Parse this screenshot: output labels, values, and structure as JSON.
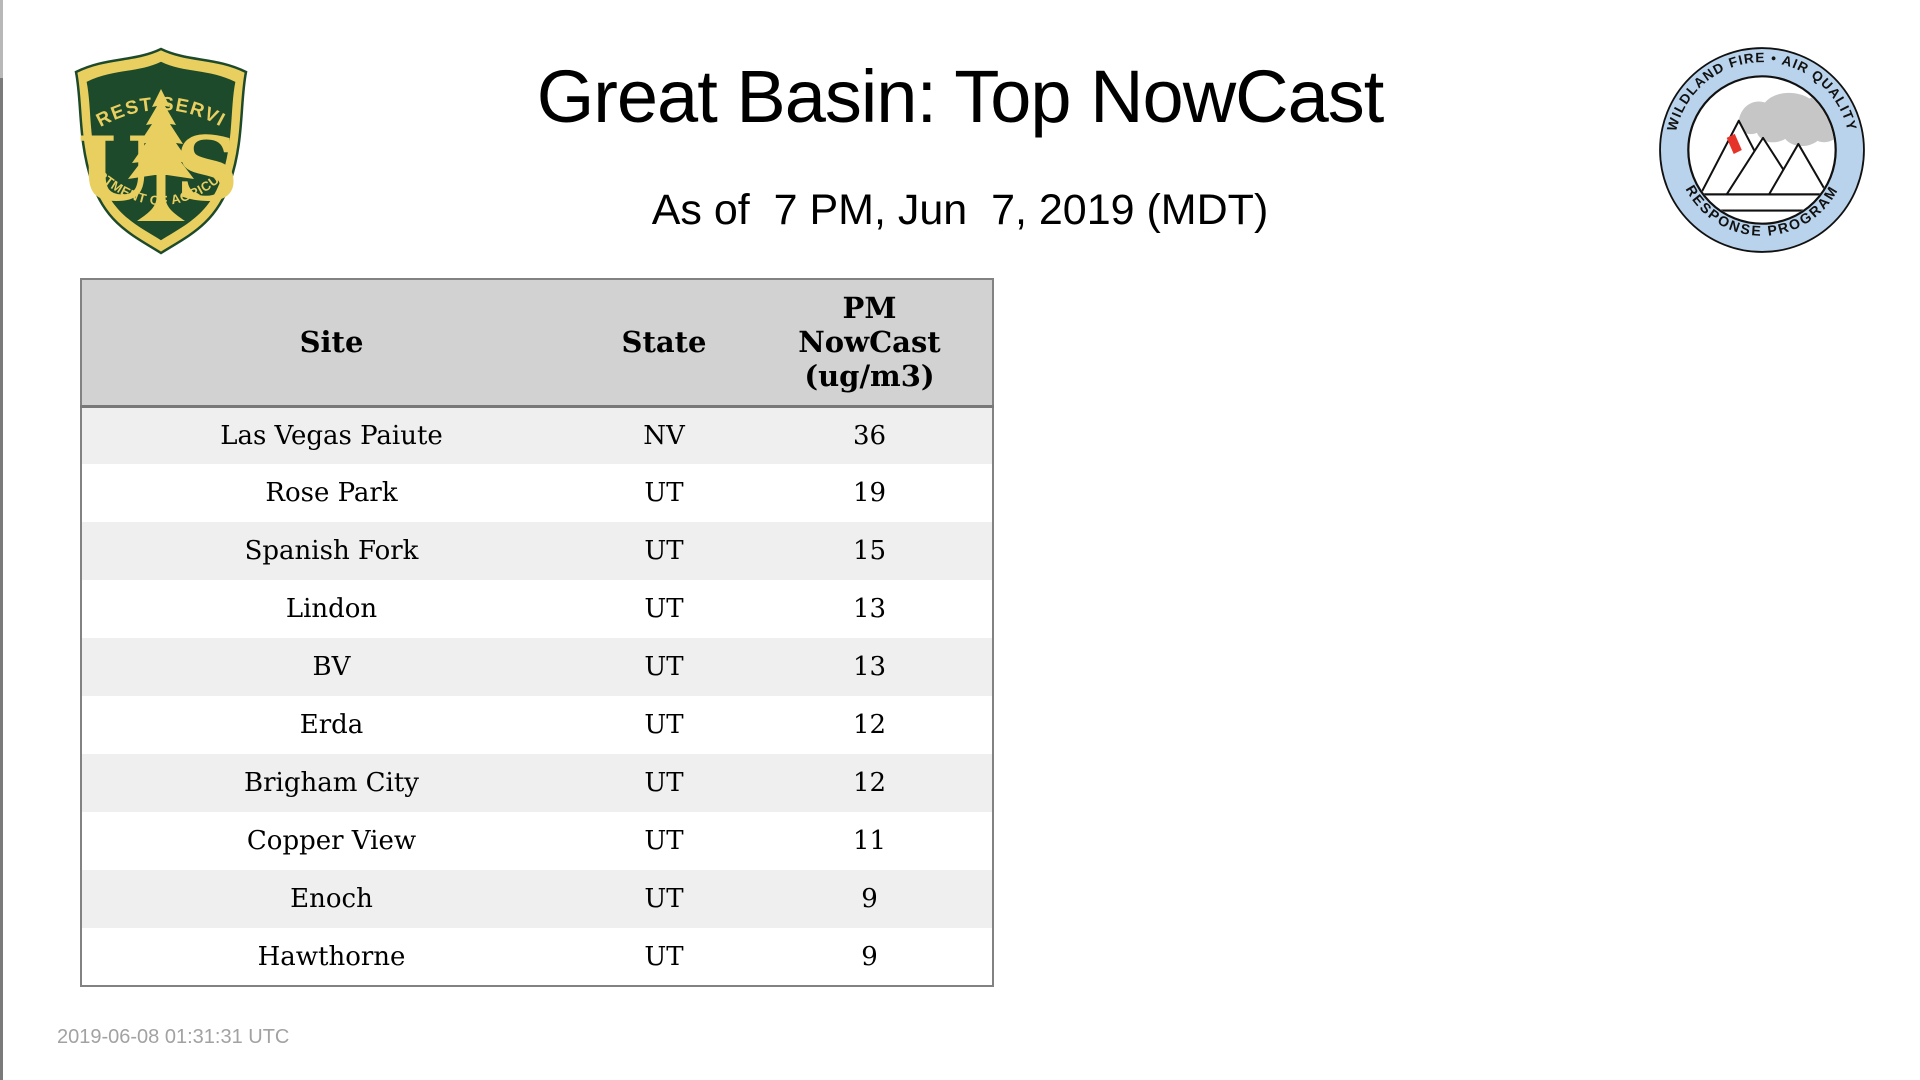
{
  "page": {
    "title": "Great Basin: Top NowCast",
    "subtitle": "As of  7 PM, Jun  7, 2019 (MDT)",
    "footer_timestamp": "2019-06-08 01:31:31 UTC"
  },
  "logos": {
    "forest_service": {
      "name": "US Forest Service shield",
      "arc_top": "FOREST SERVICE",
      "arc_bottom": "DEPARTMENT OF AGRICULTURE",
      "letter_left": "U",
      "letter_right": "S",
      "colors": {
        "green": "#1e4a2c",
        "gold": "#e8cf5f"
      }
    },
    "air_quality_program": {
      "name": "Wildland Fire Air Quality Response Program badge",
      "arc_top": "WILDLAND FIRE • AIR QUALITY",
      "arc_bottom": "RESPONSE PROGRAM",
      "colors": {
        "ring": "#b9d3ec",
        "smoke": "#c6c6c6",
        "flame": "#e63329",
        "line": "#111111"
      }
    }
  },
  "table": {
    "columns": [
      "Site",
      "State",
      "PM NowCast (ug/m3)"
    ],
    "rows": [
      {
        "site": "Las Vegas Paiute",
        "state": "NV",
        "value": "36"
      },
      {
        "site": "Rose Park",
        "state": "UT",
        "value": "19"
      },
      {
        "site": "Spanish Fork",
        "state": "UT",
        "value": "15"
      },
      {
        "site": "Lindon",
        "state": "UT",
        "value": "13"
      },
      {
        "site": "BV",
        "state": "UT",
        "value": "13"
      },
      {
        "site": "Erda",
        "state": "UT",
        "value": "12"
      },
      {
        "site": "Brigham City",
        "state": "UT",
        "value": "12"
      },
      {
        "site": "Copper View",
        "state": "UT",
        "value": "11"
      },
      {
        "site": "Enoch",
        "state": "UT",
        "value": "9"
      },
      {
        "site": "Hawthorne",
        "state": "UT",
        "value": "9"
      }
    ]
  }
}
